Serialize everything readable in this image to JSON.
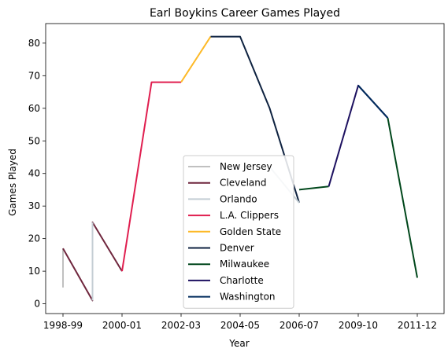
{
  "chart_data": {
    "type": "line",
    "title": "Earl Boykins Career Games Played",
    "xlabel": "Year",
    "ylabel": "Games Played",
    "x_range": [
      1998,
      2012
    ],
    "ylim": [
      -3,
      86
    ],
    "x_ticks": [
      {
        "value": 1998,
        "label": "1998-99"
      },
      {
        "value": 2000,
        "label": "2000-01"
      },
      {
        "value": 2002,
        "label": "2002-03"
      },
      {
        "value": 2004,
        "label": "2004-05"
      },
      {
        "value": 2006,
        "label": "2006-07"
      },
      {
        "value": 2008,
        "label": "2009-10"
      },
      {
        "value": 2010,
        "label": "2011-12"
      }
    ],
    "y_ticks": [
      0,
      10,
      20,
      30,
      40,
      50,
      60,
      70,
      80
    ],
    "grid": false,
    "legend_position": "lower-center",
    "series": [
      {
        "name": "New Jersey",
        "color": "#c0c0c0",
        "points": [
          [
            1998,
            17
          ],
          [
            1998,
            5
          ]
        ]
      },
      {
        "name": "Cleveland",
        "color": "#6f263d",
        "points": [
          [
            1998,
            17
          ],
          [
            1999,
            1
          ],
          [
            1999,
            25
          ],
          [
            2000,
            10
          ]
        ]
      },
      {
        "name": "Orlando",
        "color": "#c4ced4",
        "points": [
          [
            1999,
            1
          ],
          [
            1999,
            25
          ]
        ]
      },
      {
        "name": "L.A. Clippers",
        "color": "#e01e4f",
        "points": [
          [
            2000,
            10
          ],
          [
            2001,
            68
          ],
          [
            2002,
            68
          ]
        ]
      },
      {
        "name": "Golden State",
        "color": "#fdb927",
        "points": [
          [
            2002,
            68
          ],
          [
            2003,
            82
          ]
        ]
      },
      {
        "name": "Denver",
        "color": "#0e2240",
        "points": [
          [
            2003,
            82
          ],
          [
            2004,
            82
          ],
          [
            2005,
            60
          ],
          [
            2006,
            31
          ]
        ]
      },
      {
        "name": "Milwaukee",
        "color": "#00471b",
        "points": [
          [
            2006,
            35
          ],
          [
            2007,
            36
          ]
        ]
      },
      {
        "name": "Charlotte",
        "color": "#1d1160",
        "points": [
          [
            2007,
            36
          ],
          [
            2008,
            67
          ],
          [
            2009,
            57
          ]
        ]
      },
      {
        "name": "Washington",
        "color": "#002b5c",
        "points": [
          [
            2008,
            67
          ],
          [
            2009,
            57
          ]
        ]
      },
      {
        "name": "",
        "color": "#00471b",
        "points": [
          [
            2009,
            57
          ],
          [
            2010,
            8
          ]
        ]
      },
      {
        "name": "",
        "color": "#c4ced4",
        "points": [
          [
            2005,
            42
          ],
          [
            2006,
            31
          ]
        ]
      }
    ]
  }
}
